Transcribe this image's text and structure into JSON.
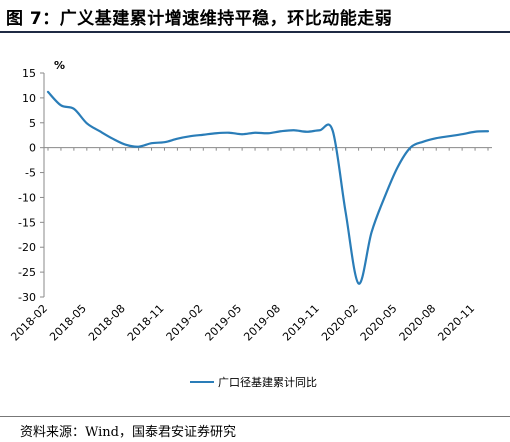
{
  "title": "图 7：广义基建累计增速维持平稳，环比动能走弱",
  "source": "资料来源：Wind，国泰君安证券研究",
  "chart_data": {
    "type": "line",
    "unit_label": "%",
    "ylim": [
      -30,
      15
    ],
    "yticks": [
      15,
      10,
      5,
      0,
      -5,
      -10,
      -15,
      -20,
      -25,
      -30
    ],
    "xtick_labels": [
      "2018-02",
      "2018-05",
      "2018-08",
      "2018-11",
      "2019-02",
      "2019-05",
      "2019-08",
      "2019-11",
      "2020-02",
      "2020-05",
      "2020-08",
      "2020-11"
    ],
    "legend_position": "bottom",
    "series": [
      {
        "name": "广口径基建累计同比",
        "color": "#2a7db8",
        "x": [
          "2018-02",
          "2018-03",
          "2018-04",
          "2018-05",
          "2018-06",
          "2018-07",
          "2018-08",
          "2018-09",
          "2018-10",
          "2018-11",
          "2018-12",
          "2019-01",
          "2019-02",
          "2019-03",
          "2019-04",
          "2019-05",
          "2019-06",
          "2019-07",
          "2019-08",
          "2019-09",
          "2019-10",
          "2019-11",
          "2019-12",
          "2020-01",
          "2020-02",
          "2020-03",
          "2020-04",
          "2020-05",
          "2020-06",
          "2020-07",
          "2020-08",
          "2020-09",
          "2020-10",
          "2020-11",
          "2020-12"
        ],
        "values": [
          11.2,
          8.5,
          7.8,
          4.9,
          3.3,
          1.8,
          0.6,
          0.2,
          0.9,
          1.1,
          1.8,
          2.3,
          2.6,
          2.9,
          3.0,
          2.7,
          3.0,
          2.9,
          3.3,
          3.5,
          3.2,
          3.5,
          3.4,
          -13.0,
          -27.3,
          -17.0,
          -10.0,
          -4.0,
          0.0,
          1.2,
          1.9,
          2.3,
          2.7,
          3.2,
          3.3
        ]
      }
    ]
  }
}
